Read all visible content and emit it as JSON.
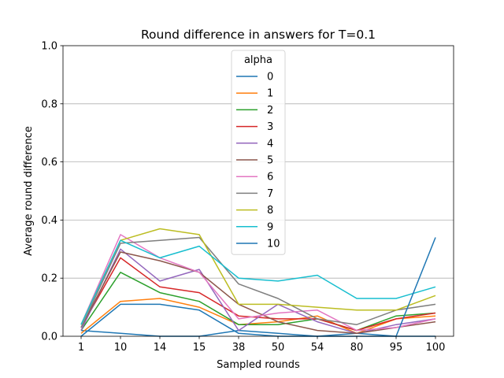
{
  "chart_data": {
    "type": "line",
    "title": "Round difference in answers for T=0.1",
    "xlabel": "Sampled rounds",
    "ylabel": "Average round difference",
    "categories": [
      "1",
      "10",
      "14",
      "15",
      "38",
      "50",
      "54",
      "80",
      "95",
      "100"
    ],
    "ylim": [
      0,
      1.0
    ],
    "yticks": [
      "0.0",
      "0.2",
      "0.4",
      "0.6",
      "0.8",
      "1.0"
    ],
    "grid": "y",
    "legend_title": "alpha",
    "legend_position": "upper-center",
    "colors": [
      "#1f77b4",
      "#ff7f0e",
      "#2ca02c",
      "#d62728",
      "#9467bd",
      "#8c564b",
      "#e377c2",
      "#7f7f7f",
      "#bcbd22",
      "#17becf",
      "#1f77b4"
    ],
    "series": [
      {
        "name": "0",
        "values": [
          0.02,
          0.01,
          0.0,
          0.0,
          0.02,
          0.01,
          0.0,
          0.01,
          0.0,
          0.0
        ]
      },
      {
        "name": "1",
        "values": [
          0.01,
          0.12,
          0.13,
          0.1,
          0.04,
          0.05,
          0.07,
          0.01,
          0.06,
          0.07
        ]
      },
      {
        "name": "2",
        "values": [
          0.02,
          0.22,
          0.15,
          0.12,
          0.04,
          0.04,
          0.06,
          0.02,
          0.07,
          0.08
        ]
      },
      {
        "name": "3",
        "values": [
          0.03,
          0.27,
          0.17,
          0.15,
          0.07,
          0.06,
          0.06,
          0.02,
          0.06,
          0.08
        ]
      },
      {
        "name": "4",
        "values": [
          0.02,
          0.3,
          0.19,
          0.23,
          0.02,
          0.11,
          0.05,
          0.01,
          0.04,
          0.06
        ]
      },
      {
        "name": "5",
        "values": [
          0.03,
          0.29,
          0.26,
          0.22,
          0.11,
          0.05,
          0.02,
          0.01,
          0.03,
          0.05
        ]
      },
      {
        "name": "6",
        "values": [
          0.04,
          0.35,
          0.27,
          0.22,
          0.06,
          0.08,
          0.09,
          0.02,
          0.03,
          0.06
        ]
      },
      {
        "name": "7",
        "values": [
          0.03,
          0.32,
          0.33,
          0.34,
          0.18,
          0.13,
          0.06,
          0.04,
          0.09,
          0.11
        ]
      },
      {
        "name": "8",
        "values": [
          0.04,
          0.33,
          0.37,
          0.35,
          0.11,
          0.11,
          0.1,
          0.09,
          0.09,
          0.14
        ]
      },
      {
        "name": "9",
        "values": [
          0.04,
          0.33,
          0.27,
          0.31,
          0.2,
          0.19,
          0.21,
          0.13,
          0.13,
          0.17
        ]
      },
      {
        "name": "10",
        "values": [
          0.0,
          0.11,
          0.11,
          0.09,
          0.01,
          0.0,
          0.0,
          0.0,
          0.0,
          0.34
        ]
      }
    ]
  }
}
